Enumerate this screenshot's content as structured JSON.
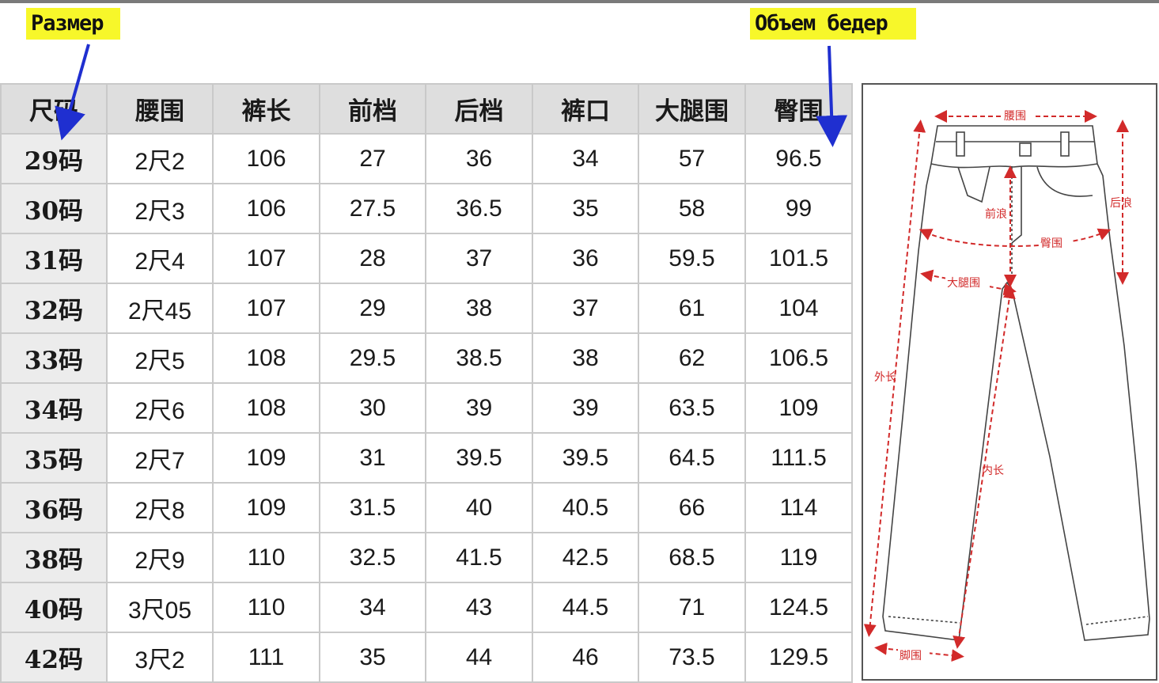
{
  "callouts": {
    "size_label": "Размер",
    "hips_label": "Объем бедер"
  },
  "table": {
    "headers": [
      "尺码",
      "腰围",
      "裤长",
      "前档",
      "后档",
      "裤口",
      "大腿围",
      "臀围"
    ],
    "rows": [
      [
        "29码",
        "2尺2",
        "106",
        "27",
        "36",
        "34",
        "57",
        "96.5"
      ],
      [
        "30码",
        "2尺3",
        "106",
        "27.5",
        "36.5",
        "35",
        "58",
        "99"
      ],
      [
        "31码",
        "2尺4",
        "107",
        "28",
        "37",
        "36",
        "59.5",
        "101.5"
      ],
      [
        "32码",
        "2尺45",
        "107",
        "29",
        "38",
        "37",
        "61",
        "104"
      ],
      [
        "33码",
        "2尺5",
        "108",
        "29.5",
        "38.5",
        "38",
        "62",
        "106.5"
      ],
      [
        "34码",
        "2尺6",
        "108",
        "30",
        "39",
        "39",
        "63.5",
        "109"
      ],
      [
        "35码",
        "2尺7",
        "109",
        "31",
        "39.5",
        "39.5",
        "64.5",
        "111.5"
      ],
      [
        "36码",
        "2尺8",
        "109",
        "31.5",
        "40",
        "40.5",
        "66",
        "114"
      ],
      [
        "38码",
        "2尺9",
        "110",
        "32.5",
        "41.5",
        "42.5",
        "68.5",
        "119"
      ],
      [
        "40码",
        "3尺05",
        "110",
        "34",
        "43",
        "44.5",
        "71",
        "124.5"
      ],
      [
        "42码",
        "3尺2",
        "111",
        "35",
        "44",
        "46",
        "73.5",
        "129.5"
      ]
    ]
  },
  "diagram": {
    "waist": "腰围",
    "front_rise": "前浪",
    "back_rise": "后浪",
    "hip": "臀围",
    "thigh": "大腿围",
    "outseam": "外长",
    "inseam": "内长",
    "leg_opening": "脚围"
  },
  "colors": {
    "callout_bg": "#f7f72a",
    "arrow": "#1f2fd0",
    "measure_line": "#d22a2a",
    "header_bg": "#dedede",
    "size_col_bg": "#ececec",
    "grid": "#c9c9c9"
  }
}
